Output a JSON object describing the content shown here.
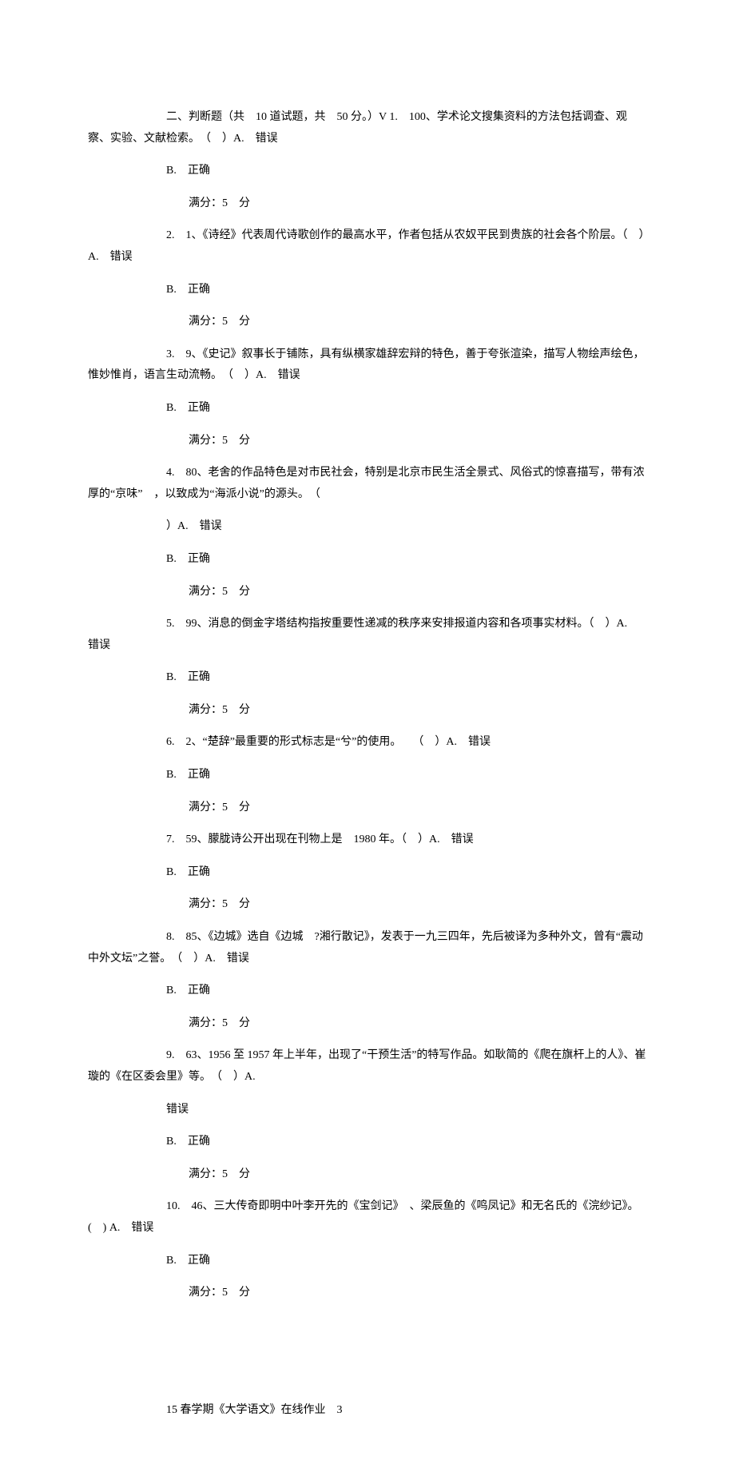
{
  "section": {
    "header": "二、判断题（共　10 道试题，共　50 分。）V 1.　100、学术论文搜集资料的方法包括调查、观察、实验、文献检索。　（　）A.　错误"
  },
  "opt_b": "B.　正确",
  "score": "满分：5　分",
  "questions": {
    "q2": {
      "line1": "2.　1、《诗经》代表周代诗歌创作的最高水平，作者包括从农奴平民到贵族的社会各个阶层。（　）A.　错误"
    },
    "q3": {
      "line1": "3.　9、《史记》叙事长于铺陈，具有纵横家雄辞宏辩的特色，善于夸张渲染，描写人物绘声绘色，惟妙惟肖，语言生动流畅。　（　）A.　错误"
    },
    "q4": {
      "line1": "4.　80、老舍的作品特色是对市民社会，特别是北京市民生活全景式、风俗式的惊喜描写，带有浓厚的“京味”　，以致成为“海派小说”的源头。　（",
      "line2": "）A.　错误"
    },
    "q5": {
      "line1": "5.　99、消息的倒金字塔结构指按重要性递减的秩序来安排报道内容和各项事实材料。（　）A.　错误"
    },
    "q6": {
      "line1": "6.　2、“楚辞”最重要的形式标志是“兮”的使用。　　（　）A.　错误"
    },
    "q7": {
      "line1": "7.　59、朦胧诗公开出现在刊物上是　1980 年。（　）A.　错误"
    },
    "q8": {
      "line1": "8.　85、《边城》选自《边城　?湘行散记》，发表于一九三四年，先后被译为多种外文，曾有“震动中外文坛”之誉。　（　）A.　错误"
    },
    "q9": {
      "line1": "9.　63、1956 至 1957 年上半年，出现了“干预生活”的特写作品。如耿简的《爬在旗杆上的人》、崔璇的《在区委会里》等。　（　）A.",
      "line2": "错误"
    },
    "q10": {
      "line1": "10.　46、三大传奇即明中叶李开先的《宝剑记》　、梁辰鱼的《鸣凤记》和无名氏的《浣纱记》。(　) A.　错误"
    }
  },
  "footer": "15 春学期《大学语文》在线作业　3"
}
